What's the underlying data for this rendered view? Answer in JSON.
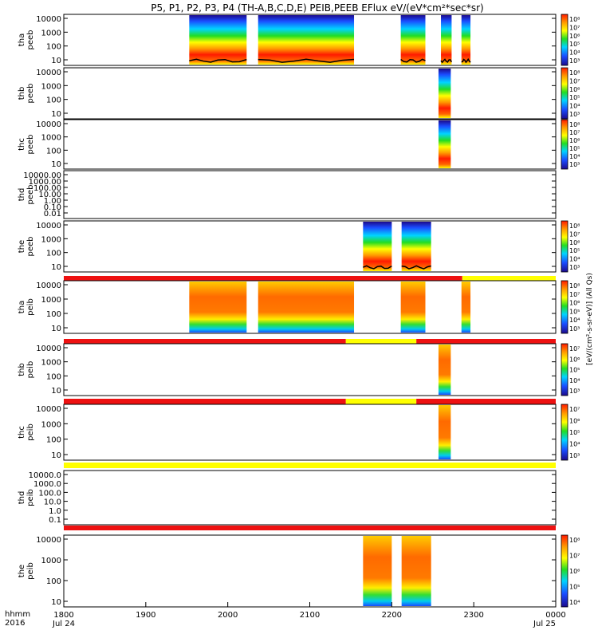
{
  "title": "P5, P1, P2, P3, P4 (TH-A,B,C,D,E) PEIB,PEEB EFlux eV/(eV*cm²*sec*sr)",
  "corner_label": [
    "hhmm",
    "2016"
  ],
  "colorbar_right_label": "[eV/(cm²-s-sr-eV)] (All Qs)",
  "colors": {
    "blue_dark": "#1c0a8c",
    "blue": "#1a4cff",
    "cyan": "#00d4ff",
    "green": "#22dd22",
    "yellow": "#ffff00",
    "orange": "#ff9900",
    "red": "#ff1a00",
    "status_red": "#ee1111",
    "status_yellow": "#ffff00"
  },
  "chart_data": {
    "type": "heatmap",
    "x_axis": {
      "range": [
        1800,
        2400
      ],
      "ticks": [
        "1800",
        "1900",
        "2000",
        "2100",
        "2200",
        "2300",
        "0000"
      ],
      "tick_dates": [
        "Jul 24",
        "Jul 25"
      ]
    },
    "panels": [
      {
        "id": "tha_peeb",
        "ylabel": [
          "tha",
          "peeb"
        ],
        "yticks": [
          "10000",
          "1000",
          "100",
          "10"
        ],
        "ylim": [
          5,
          30000
        ],
        "cbar_ticks": [
          "10⁸",
          "10⁷",
          "10⁶",
          "10⁵",
          "10⁴",
          "10³"
        ],
        "profile": "electron",
        "intervals": [
          [
            1953,
            2023
          ],
          [
            2037,
            2154
          ],
          [
            2211,
            2241
          ],
          [
            2260,
            2273
          ],
          [
            2285,
            2296
          ]
        ],
        "trace": true
      },
      {
        "id": "thb_peeb",
        "ylabel": [
          "thb",
          "peeb"
        ],
        "yticks": [
          "10000",
          "1000",
          "100",
          "10"
        ],
        "ylim": [
          5,
          30000
        ],
        "cbar_ticks": [
          "10⁸",
          "10⁷",
          "10⁶",
          "10⁵",
          "10⁴",
          "10³"
        ],
        "profile": "electron",
        "intervals": [
          [
            2257,
            2272
          ]
        ]
      },
      {
        "id": "thc_peeb",
        "ylabel": [
          "thc",
          "peeb"
        ],
        "yticks": [
          "10000",
          "1000",
          "100",
          "10"
        ],
        "ylim": [
          5,
          30000
        ],
        "cbar_ticks": [
          "10⁸",
          "10⁷",
          "10⁶",
          "10⁵",
          "10⁴",
          "10³"
        ],
        "profile": "electron",
        "intervals": [
          [
            2257,
            2272
          ]
        ]
      },
      {
        "id": "thd_peeb",
        "ylabel": [
          "thd",
          "peeb"
        ],
        "yticks": [
          "10000.00",
          "1000.00",
          "100.00",
          "10.00",
          "1.00",
          "0.10",
          "0.01"
        ],
        "ylim": [
          0.01,
          10000
        ],
        "cbar_ticks": [],
        "profile": "empty",
        "intervals": []
      },
      {
        "id": "the_peeb",
        "ylabel": [
          "the",
          "peeb"
        ],
        "yticks": [
          "10000",
          "1000",
          "100",
          "10"
        ],
        "ylim": [
          5,
          30000
        ],
        "cbar_ticks": [
          "10⁸",
          "10⁷",
          "10⁶",
          "10⁵",
          "10⁴",
          "10³"
        ],
        "profile": "electron",
        "intervals": [
          [
            2165,
            2200
          ],
          [
            2212,
            2248
          ]
        ],
        "trace": true
      },
      {
        "id": "tha_peib",
        "ylabel": [
          "tha",
          "peib"
        ],
        "yticks": [
          "10000",
          "1000",
          "100",
          "10"
        ],
        "ylim": [
          5,
          30000
        ],
        "cbar_ticks": [
          "10⁸",
          "10⁷",
          "10⁶",
          "10⁵",
          "10⁴",
          "10³"
        ],
        "profile": "ion",
        "intervals": [
          [
            1953,
            2023
          ],
          [
            2037,
            2154
          ],
          [
            2211,
            2241
          ],
          [
            2285,
            2296
          ]
        ],
        "status": [
          [
            "red",
            1800,
            2286
          ],
          [
            "yellow",
            2286,
            2400
          ]
        ]
      },
      {
        "id": "thb_peib",
        "ylabel": [
          "thb",
          "peib"
        ],
        "yticks": [
          "10000",
          "1000",
          "100",
          "10"
        ],
        "ylim": [
          5,
          30000
        ],
        "cbar_ticks": [
          "10⁷",
          "10⁶",
          "10⁵",
          "10⁴",
          "10³"
        ],
        "profile": "ion",
        "intervals": [
          [
            2257,
            2272
          ]
        ],
        "status": [
          [
            "red",
            1800,
            2144
          ],
          [
            "yellow",
            2144,
            2230
          ],
          [
            "red",
            2230,
            2400
          ]
        ]
      },
      {
        "id": "thc_peib",
        "ylabel": [
          "thc",
          "peib"
        ],
        "yticks": [
          "10000",
          "1000",
          "100",
          "10"
        ],
        "ylim": [
          5,
          30000
        ],
        "cbar_ticks": [
          "10⁷",
          "10⁶",
          "10⁵",
          "10⁴",
          "10³"
        ],
        "profile": "ion",
        "intervals": [
          [
            2257,
            2272
          ]
        ],
        "status": [
          [
            "red",
            1800,
            2144
          ],
          [
            "yellow",
            2144,
            2230
          ],
          [
            "red",
            2230,
            2400
          ]
        ]
      },
      {
        "id": "thd_peib",
        "ylabel": [
          "thd",
          "peib"
        ],
        "yticks": [
          "10000.0",
          "1000.0",
          "100.0",
          "10.0",
          "1.0",
          "0.1"
        ],
        "ylim": [
          0.05,
          30000
        ],
        "cbar_ticks": [],
        "profile": "empty",
        "intervals": [],
        "status": [
          [
            "yellow",
            1800,
            2400
          ]
        ]
      },
      {
        "id": "the_peib",
        "ylabel": [
          "the",
          "peib"
        ],
        "yticks": [
          "10000",
          "1000",
          "100",
          "10"
        ],
        "ylim": [
          5,
          30000
        ],
        "cbar_ticks": [
          "10⁸",
          "10⁷",
          "10⁶",
          "10⁵",
          "10⁴"
        ],
        "profile": "ion",
        "intervals": [
          [
            2165,
            2200
          ],
          [
            2212,
            2248
          ]
        ],
        "status": [
          [
            "red",
            1800,
            2400
          ]
        ]
      }
    ]
  }
}
